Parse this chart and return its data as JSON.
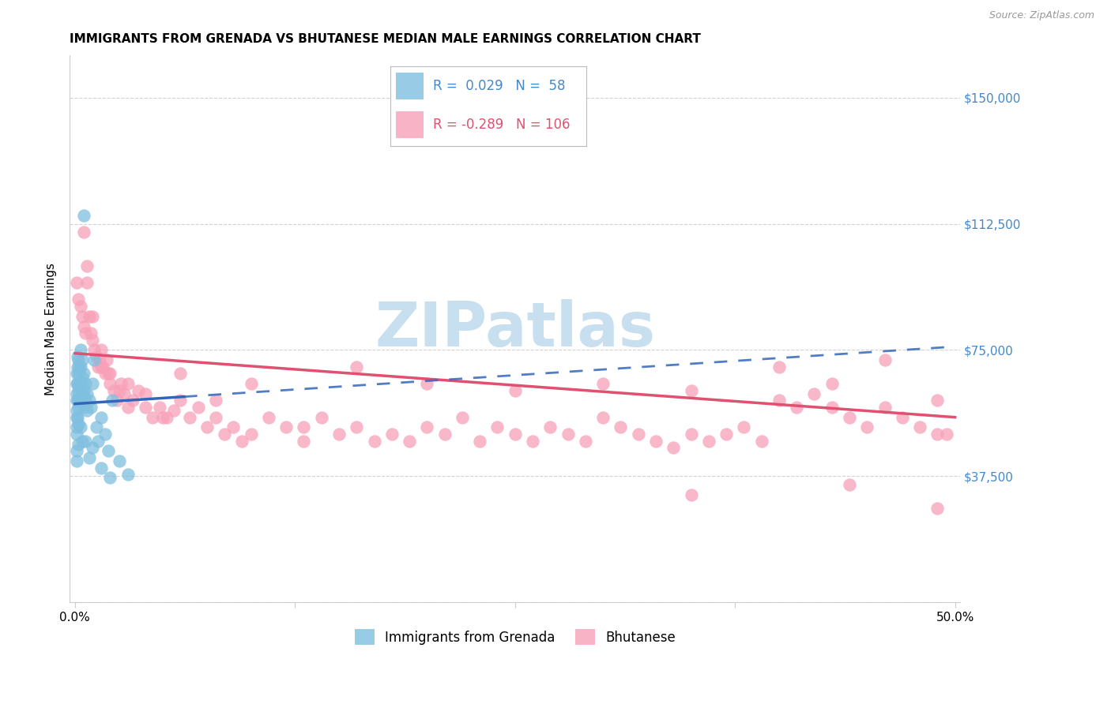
{
  "title": "IMMIGRANTS FROM GRENADA VS BHUTANESE MEDIAN MALE EARNINGS CORRELATION CHART",
  "source": "Source: ZipAtlas.com",
  "ylabel": "Median Male Earnings",
  "ylim": [
    0,
    162500
  ],
  "xlim": [
    -0.003,
    0.503
  ],
  "yticks": [
    0,
    37500,
    75000,
    112500,
    150000
  ],
  "ytick_labels": [
    "",
    "$37,500",
    "$75,000",
    "$112,500",
    "$150,000"
  ],
  "xticks": [
    0.0,
    0.125,
    0.25,
    0.375,
    0.5
  ],
  "xtick_labels": [
    "0.0%",
    "",
    "",
    "",
    "50.0%"
  ],
  "grenada_color": "#7fbfdf",
  "bhutanese_color": "#f8a0b8",
  "trend_grenada_color": "#3366bb",
  "trend_bhutanese_color": "#e05070",
  "ytick_color": "#4488cc",
  "watermark_color": "#c8dff0",
  "legend_box_color": "#e8e8e8",
  "grid_color": "#cccccc",
  "title_fontsize": 11,
  "source_fontsize": 9,
  "ylabel_fontsize": 11,
  "tick_fontsize": 11,
  "legend_fontsize": 12,
  "watermark_text": "ZIPatlas",
  "stats_line1": "R =  0.029   N =  58",
  "stats_line2": "R = -0.289   N = 106",
  "stats_color1": "#4488cc",
  "stats_color2": "#e05070",
  "bottom_legend1": "Immigrants from Grenada",
  "bottom_legend2": "Bhutanese",
  "grenada_x": [
    0.001,
    0.001,
    0.001,
    0.001,
    0.001,
    0.001,
    0.001,
    0.001,
    0.0015,
    0.0015,
    0.0015,
    0.0015,
    0.0015,
    0.002,
    0.002,
    0.002,
    0.002,
    0.002,
    0.0025,
    0.0025,
    0.0025,
    0.003,
    0.003,
    0.003,
    0.003,
    0.004,
    0.004,
    0.004,
    0.005,
    0.005,
    0.005,
    0.006,
    0.006,
    0.007,
    0.007,
    0.008,
    0.009,
    0.01,
    0.011,
    0.012,
    0.013,
    0.015,
    0.017,
    0.019,
    0.021,
    0.001,
    0.001,
    0.002,
    0.003,
    0.004,
    0.005,
    0.006,
    0.008,
    0.01,
    0.015,
    0.02,
    0.025,
    0.03
  ],
  "grenada_y": [
    68000,
    65000,
    62000,
    60000,
    57000,
    55000,
    52000,
    50000,
    73000,
    70000,
    65000,
    60000,
    55000,
    72000,
    68000,
    63000,
    58000,
    53000,
    70000,
    65000,
    60000,
    75000,
    70000,
    65000,
    60000,
    72000,
    67000,
    62000,
    68000,
    63000,
    58000,
    65000,
    60000,
    62000,
    57000,
    60000,
    58000,
    65000,
    72000,
    52000,
    48000,
    55000,
    50000,
    45000,
    60000,
    45000,
    42000,
    47000,
    52000,
    48000,
    115000,
    48000,
    43000,
    46000,
    40000,
    37000,
    42000,
    38000
  ],
  "bhutanese_x": [
    0.001,
    0.002,
    0.003,
    0.004,
    0.005,
    0.006,
    0.007,
    0.008,
    0.009,
    0.01,
    0.011,
    0.012,
    0.013,
    0.014,
    0.015,
    0.016,
    0.017,
    0.018,
    0.019,
    0.02,
    0.022,
    0.024,
    0.026,
    0.028,
    0.03,
    0.033,
    0.036,
    0.04,
    0.044,
    0.048,
    0.052,
    0.056,
    0.06,
    0.065,
    0.07,
    0.075,
    0.08,
    0.085,
    0.09,
    0.095,
    0.1,
    0.11,
    0.12,
    0.13,
    0.14,
    0.15,
    0.16,
    0.17,
    0.18,
    0.19,
    0.2,
    0.21,
    0.22,
    0.23,
    0.24,
    0.25,
    0.26,
    0.27,
    0.28,
    0.29,
    0.3,
    0.31,
    0.32,
    0.33,
    0.34,
    0.35,
    0.36,
    0.37,
    0.38,
    0.39,
    0.4,
    0.41,
    0.42,
    0.43,
    0.44,
    0.45,
    0.46,
    0.47,
    0.48,
    0.49,
    0.005,
    0.01,
    0.015,
    0.02,
    0.03,
    0.04,
    0.05,
    0.06,
    0.08,
    0.1,
    0.13,
    0.16,
    0.2,
    0.25,
    0.3,
    0.35,
    0.4,
    0.43,
    0.46,
    0.49,
    0.007,
    0.025,
    0.35,
    0.44,
    0.49,
    0.495
  ],
  "bhutanese_y": [
    95000,
    90000,
    88000,
    85000,
    82000,
    80000,
    95000,
    85000,
    80000,
    78000,
    75000,
    73000,
    70000,
    72000,
    75000,
    70000,
    68000,
    72000,
    68000,
    65000,
    63000,
    60000,
    65000,
    62000,
    65000,
    60000,
    63000,
    58000,
    55000,
    58000,
    55000,
    57000,
    60000,
    55000,
    58000,
    52000,
    55000,
    50000,
    52000,
    48000,
    50000,
    55000,
    52000,
    48000,
    55000,
    50000,
    52000,
    48000,
    50000,
    48000,
    52000,
    50000,
    55000,
    48000,
    52000,
    50000,
    48000,
    52000,
    50000,
    48000,
    55000,
    52000,
    50000,
    48000,
    46000,
    50000,
    48000,
    50000,
    52000,
    48000,
    60000,
    58000,
    62000,
    58000,
    55000,
    52000,
    58000,
    55000,
    52000,
    50000,
    110000,
    85000,
    70000,
    68000,
    58000,
    62000,
    55000,
    68000,
    60000,
    65000,
    52000,
    70000,
    65000,
    63000,
    65000,
    63000,
    70000,
    65000,
    72000,
    60000,
    100000,
    63000,
    32000,
    35000,
    28000,
    50000
  ],
  "grenada_trend_x0": 0.0,
  "grenada_trend_x1": 0.5,
  "grenada_trend_y0": 59000,
  "grenada_trend_y1": 76000,
  "bhutanese_trend_x0": 0.0,
  "bhutanese_trend_x1": 0.5,
  "bhutanese_trend_y0": 74000,
  "bhutanese_trend_y1": 55000
}
